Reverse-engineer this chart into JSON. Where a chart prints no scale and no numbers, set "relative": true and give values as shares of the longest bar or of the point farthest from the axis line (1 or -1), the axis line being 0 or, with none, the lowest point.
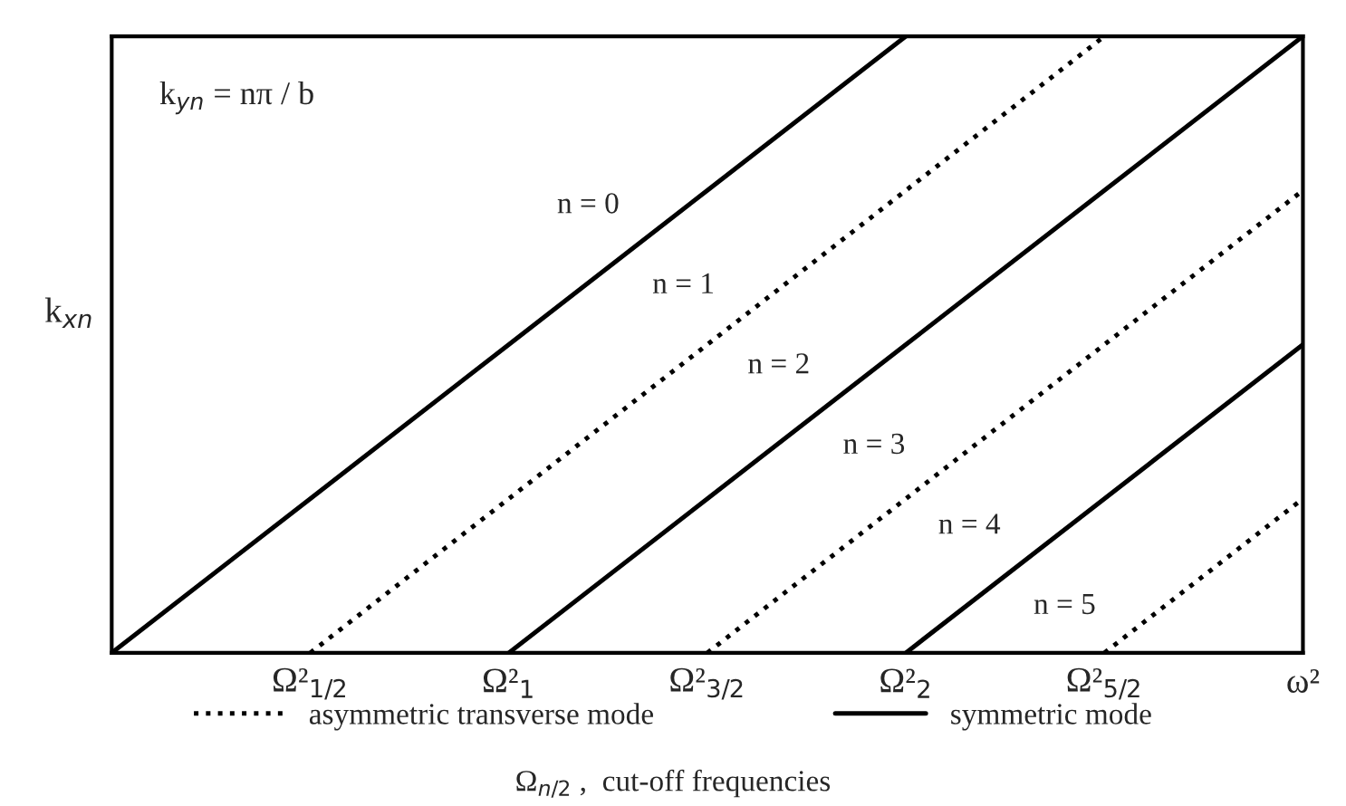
{
  "chart_data": {
    "type": "line",
    "relative": true,
    "ylabel": "k$_{xn}$",
    "categories": [
      null,
      "Ω²$_{1/2}$",
      "Ω²$_{1}$",
      "Ω²$_{3/2}$",
      "Ω²$_{2}$",
      "Ω²$_{5/2}$",
      "ω²"
    ],
    "series": [
      {
        "name": "n = 0",
        "color": "#000000",
        "line_style": "solid",
        "values": [
          0,
          0.25,
          0.5,
          0.75,
          1,
          null,
          null
        ]
      },
      {
        "name": "n = 1",
        "color": "#000000",
        "line_style": "dotted",
        "values": [
          null,
          0,
          0.25,
          0.5,
          0.75,
          1,
          null
        ]
      },
      {
        "name": "n = 2",
        "color": "#000000",
        "line_style": "solid",
        "values": [
          null,
          null,
          0,
          0.25,
          0.5,
          0.75,
          1
        ]
      },
      {
        "name": "n = 3",
        "color": "#000000",
        "line_style": "dotted",
        "values": [
          null,
          null,
          null,
          0,
          0.25,
          0.5,
          0.75
        ]
      },
      {
        "name": "n = 4",
        "color": "#000000",
        "line_style": "solid",
        "values": [
          null,
          null,
          null,
          null,
          0,
          0.25,
          0.5
        ]
      },
      {
        "name": "n = 5",
        "color": "#000000",
        "line_style": "dotted",
        "values": [
          null,
          null,
          null,
          null,
          null,
          0,
          0.25
        ]
      }
    ],
    "annotations": [
      "k$_{yn}$ = nπ / b",
      "asymmetric transverse mode",
      "symmetric mode",
      "Ω$_{n/2}$ ,  cut-off frequencies"
    ],
    "grid": false,
    "legend": false
  }
}
